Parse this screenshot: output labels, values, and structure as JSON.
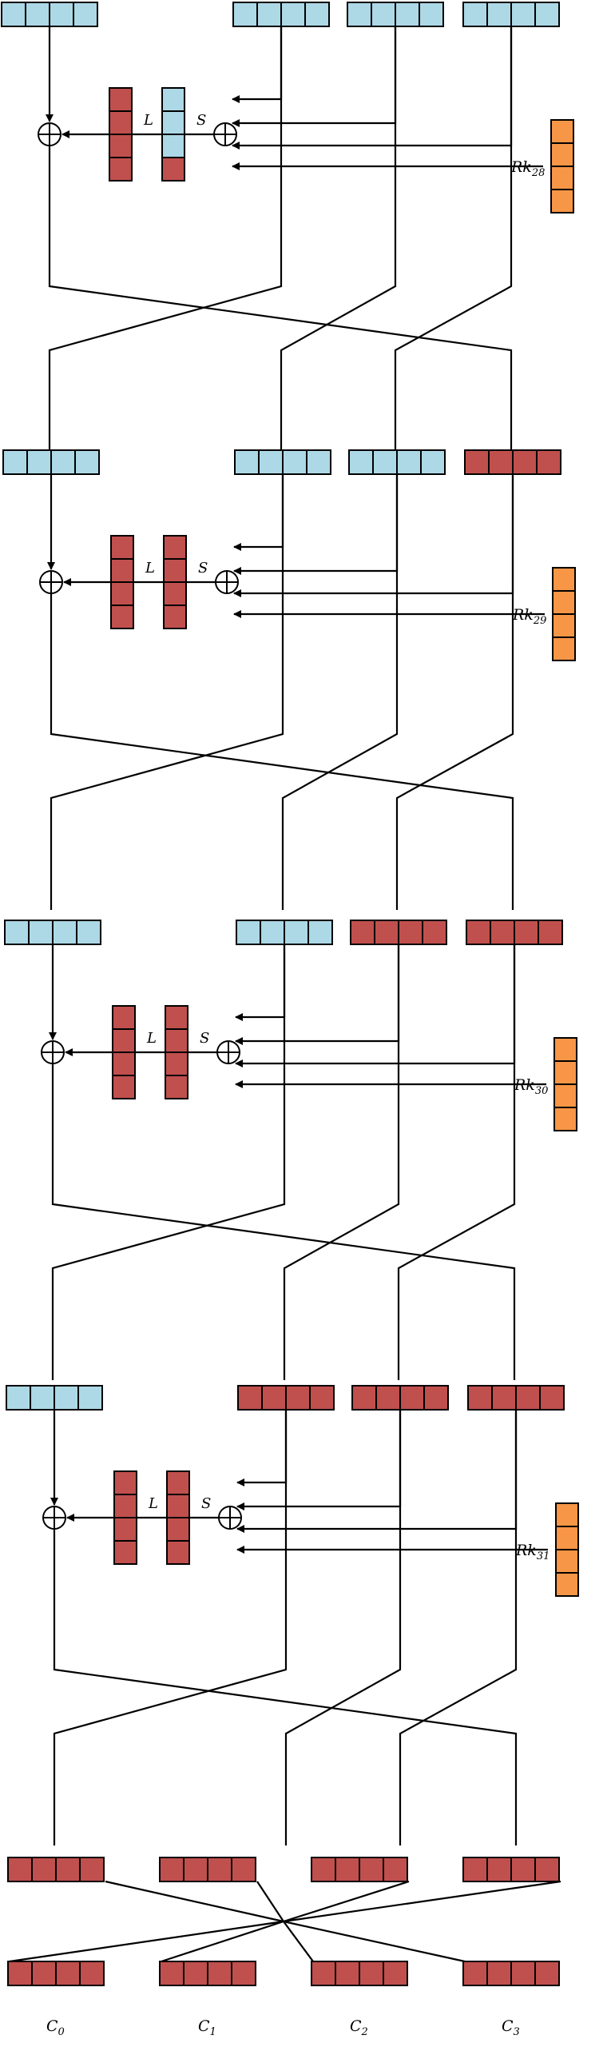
{
  "colors": {
    "active": "#add8e6",
    "inactive": "#c0504d",
    "key": "#f79646",
    "line": "#000000"
  },
  "rounds": [
    {
      "key_label": "Rk",
      "key_index": "28",
      "l_label": "L",
      "s_label": "S",
      "words": [
        "active",
        "active",
        "active",
        "active"
      ],
      "l_cells": [
        "inactive",
        "inactive",
        "inactive",
        "inactive"
      ],
      "s_cells": [
        "active",
        "active",
        "active",
        "inactive"
      ]
    },
    {
      "key_label": "Rk",
      "key_index": "29",
      "l_label": "L",
      "s_label": "S",
      "words": [
        "active",
        "active",
        "active",
        "inactive"
      ],
      "l_cells": [
        "inactive",
        "inactive",
        "inactive",
        "inactive"
      ],
      "s_cells": [
        "inactive",
        "inactive",
        "inactive",
        "inactive"
      ]
    },
    {
      "key_label": "Rk",
      "key_index": "30",
      "l_label": "L",
      "s_label": "S",
      "words": [
        "active",
        "active",
        "inactive",
        "inactive"
      ],
      "l_cells": [
        "inactive",
        "inactive",
        "inactive",
        "inactive"
      ],
      "s_cells": [
        "inactive",
        "inactive",
        "inactive",
        "inactive"
      ]
    },
    {
      "key_label": "Rk",
      "key_index": "31",
      "l_label": "L",
      "s_label": "S",
      "words": [
        "active",
        "inactive",
        "inactive",
        "inactive"
      ],
      "l_cells": [
        "inactive",
        "inactive",
        "inactive",
        "inactive"
      ],
      "s_cells": [
        "inactive",
        "inactive",
        "inactive",
        "inactive"
      ]
    }
  ],
  "pre_output": [
    "inactive",
    "inactive",
    "inactive",
    "inactive"
  ],
  "outputs": [
    {
      "label": "C",
      "index": "0",
      "state": "inactive"
    },
    {
      "label": "C",
      "index": "1",
      "state": "inactive"
    },
    {
      "label": "C",
      "index": "2",
      "state": "inactive"
    },
    {
      "label": "C",
      "index": "3",
      "state": "inactive"
    }
  ]
}
